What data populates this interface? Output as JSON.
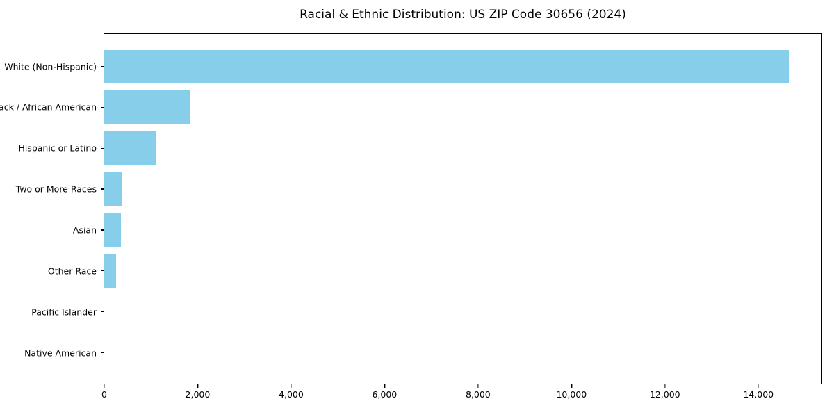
{
  "chart_data": {
    "type": "bar",
    "orientation": "horizontal",
    "title": "Racial & Ethnic Distribution: US ZIP Code 30656 (2024)",
    "categories": [
      "White (Non-Hispanic)",
      "Black / African American",
      "Hispanic or Latino",
      "Two or More Races",
      "Asian",
      "Other Race",
      "Pacific Islander",
      "Native American"
    ],
    "values": [
      14650,
      1850,
      1100,
      370,
      360,
      260,
      0,
      0
    ],
    "xlabel": "",
    "ylabel": "",
    "xlim": [
      0,
      15350
    ],
    "x_ticks": [
      0,
      2000,
      4000,
      6000,
      8000,
      10000,
      12000,
      14000
    ],
    "x_tick_labels": [
      "0",
      "2,000",
      "4,000",
      "6,000",
      "8,000",
      "10,000",
      "12,000",
      "14,000"
    ],
    "bar_color": "#87CEEB",
    "grid": false,
    "legend": false,
    "background_color": "#ffffff",
    "spine_color": "#000000"
  }
}
